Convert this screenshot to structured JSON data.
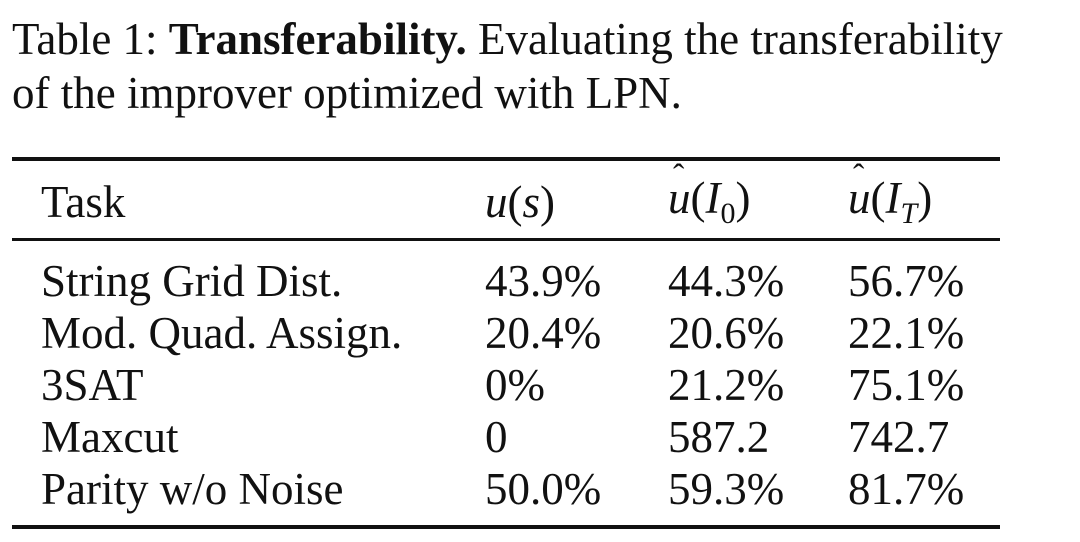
{
  "caption": {
    "label": "Table 1:",
    "bold_title": "Transferability.",
    "text_line1": "Evaluating the transferability",
    "text_line2": "of the improver optimized with LPN."
  },
  "table": {
    "headers": {
      "task": "Task",
      "col1_func": "u",
      "col1_arg": "s",
      "col2_func": "u",
      "col2_arg": "I",
      "col2_sub": "0",
      "col3_func": "u",
      "col3_arg": "I",
      "col3_sub": "T"
    },
    "rows": [
      {
        "task": "String Grid Dist.",
        "u_s": "43.9%",
        "u_I0": "44.3%",
        "u_IT": "56.7%"
      },
      {
        "task": "Mod. Quad. Assign.",
        "u_s": "20.4%",
        "u_I0": "20.6%",
        "u_IT": "22.1%"
      },
      {
        "task": "3SAT",
        "u_s": "0%",
        "u_I0": "21.2%",
        "u_IT": "75.1%"
      },
      {
        "task": "Maxcut",
        "u_s": "0",
        "u_I0": "587.2",
        "u_IT": "742.7"
      },
      {
        "task": "Parity w/o Noise",
        "u_s": "50.0%",
        "u_I0": "59.3%",
        "u_IT": "81.7%"
      }
    ]
  }
}
